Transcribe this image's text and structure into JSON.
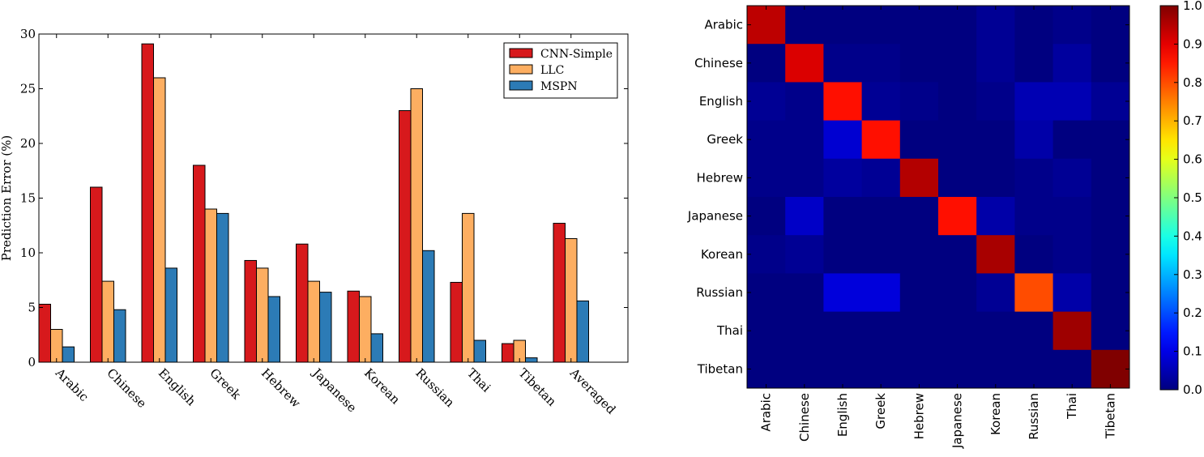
{
  "chart_data": [
    {
      "type": "bar",
      "ylabel": "Prediction Error (%)",
      "ylim": [
        0,
        30
      ],
      "yticks": [
        0,
        5,
        10,
        15,
        20,
        25,
        30
      ],
      "categories": [
        "Arabic",
        "Chinese",
        "English",
        "Greek",
        "Hebrew",
        "Japanese",
        "Korean",
        "Russian",
        "Thai",
        "Tibetan",
        "Averaged"
      ],
      "series": [
        {
          "name": "CNN-Simple",
          "color": "#d7191c",
          "values": [
            5.3,
            16.0,
            29.1,
            18.0,
            9.3,
            10.8,
            6.5,
            23.0,
            7.3,
            1.7,
            12.7
          ]
        },
        {
          "name": "LLC",
          "color": "#fdae61",
          "values": [
            3.0,
            7.4,
            26.0,
            14.0,
            8.6,
            7.4,
            6.0,
            25.0,
            13.6,
            2.0,
            11.3
          ]
        },
        {
          "name": "MSPN",
          "color": "#2c7bb6",
          "values": [
            1.4,
            4.8,
            8.6,
            13.6,
            6.0,
            6.4,
            2.6,
            10.2,
            2.0,
            0.4,
            5.6
          ]
        }
      ],
      "legend_position": "top-right",
      "grid": false
    },
    {
      "type": "heatmap",
      "labels": [
        "Arabic",
        "Chinese",
        "English",
        "Greek",
        "Hebrew",
        "Japanese",
        "Korean",
        "Russian",
        "Thai",
        "Tibetan"
      ],
      "colormap": "jet",
      "vmin": 0.0,
      "vmax": 1.0,
      "colorbar_ticks": [
        "0.0",
        "0.1",
        "0.2",
        "0.3",
        "0.4",
        "0.5",
        "0.6",
        "0.7",
        "0.8",
        "0.9",
        "1.0"
      ],
      "matrix": [
        [
          0.94,
          0.0,
          0.0,
          0.0,
          0.0,
          0.0,
          0.02,
          0.0,
          0.01,
          0.0
        ],
        [
          0.0,
          0.91,
          0.01,
          0.01,
          0.0,
          0.0,
          0.02,
          0.0,
          0.03,
          0.0
        ],
        [
          0.02,
          0.01,
          0.86,
          0.02,
          0.01,
          0.0,
          0.01,
          0.05,
          0.05,
          0.02
        ],
        [
          0.01,
          0.01,
          0.08,
          0.86,
          0.0,
          0.0,
          0.0,
          0.04,
          0.0,
          0.0
        ],
        [
          0.01,
          0.01,
          0.03,
          0.02,
          0.95,
          0.0,
          0.0,
          0.01,
          0.02,
          0.0
        ],
        [
          0.0,
          0.07,
          0.0,
          0.0,
          0.0,
          0.86,
          0.04,
          0.01,
          0.01,
          0.0
        ],
        [
          0.01,
          0.02,
          0.0,
          0.0,
          0.0,
          0.0,
          0.96,
          0.0,
          0.01,
          0.0
        ],
        [
          0.0,
          0.0,
          0.09,
          0.09,
          0.0,
          0.0,
          0.02,
          0.8,
          0.04,
          0.0
        ],
        [
          0.0,
          0.0,
          0.0,
          0.0,
          0.0,
          0.0,
          0.0,
          0.0,
          0.97,
          0.0
        ],
        [
          0.0,
          0.0,
          0.0,
          0.0,
          0.0,
          0.0,
          0.0,
          0.0,
          0.0,
          1.0
        ]
      ]
    }
  ]
}
